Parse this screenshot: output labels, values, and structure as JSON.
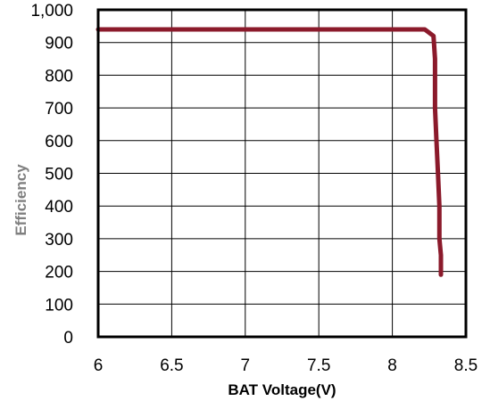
{
  "chart_data": {
    "type": "line",
    "title": "",
    "xlabel": "BAT Voltage(V)",
    "ylabel": "Efficiency",
    "xlim": [
      6,
      8.5
    ],
    "ylim": [
      0,
      1000
    ],
    "x_ticks": [
      6,
      6.5,
      7,
      7.5,
      8,
      8.5
    ],
    "x_tick_labels": [
      "6",
      "6.5",
      "7",
      "7.5",
      "8",
      "8.5"
    ],
    "y_ticks": [
      0,
      100,
      200,
      300,
      400,
      500,
      600,
      700,
      800,
      900,
      1000
    ],
    "y_tick_labels": [
      "0",
      "100",
      "200",
      "300",
      "400",
      "500",
      "600",
      "700",
      "800",
      "900",
      "1,000"
    ],
    "grid": true,
    "legend": "none",
    "series": [
      {
        "color": "#8b1a2b",
        "x": [
          6.0,
          6.5,
          7.0,
          7.5,
          8.0,
          8.22,
          8.28,
          8.29,
          8.29,
          8.3,
          8.31,
          8.32,
          8.32,
          8.33,
          8.33
        ],
        "y": [
          940,
          940,
          940,
          940,
          940,
          940,
          920,
          850,
          700,
          600,
          500,
          400,
          300,
          250,
          190
        ]
      }
    ]
  }
}
